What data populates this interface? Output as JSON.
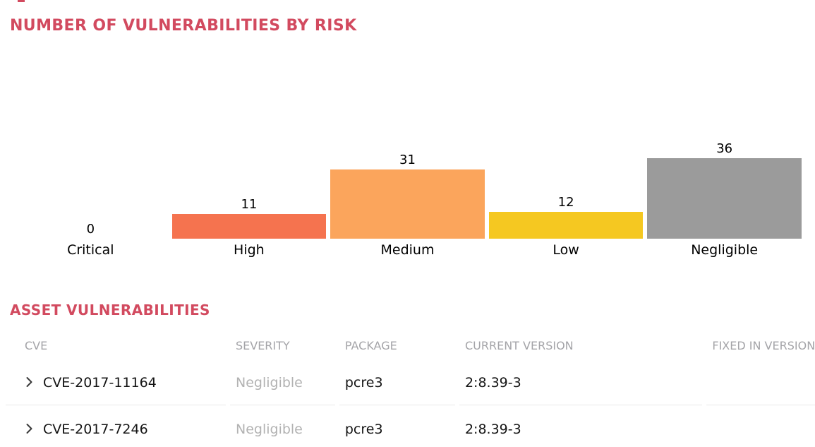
{
  "theme": {
    "accent": "#d24a5f",
    "header_gray": "#a4a4a8",
    "muted_text": "#b2b2b2",
    "divider": "#eaeaea",
    "background": "#ffffff"
  },
  "chart_data": {
    "type": "bar",
    "title": "NUMBER OF VULNERABILITIES BY RISK",
    "categories": [
      "Critical",
      "High",
      "Medium",
      "Low",
      "Negligible"
    ],
    "values": [
      0,
      11,
      31,
      12,
      36
    ],
    "colors": [
      "",
      "#f5734f",
      "#fba55c",
      "#f5c821",
      "#9b9b9b"
    ],
    "value_labels": [
      "0",
      "11",
      "31",
      "12",
      "36"
    ],
    "xlabel": "",
    "ylabel": "",
    "ylim": [
      0,
      36
    ],
    "grid": false,
    "legend": "none",
    "axes_shown": false
  },
  "asset_table": {
    "title": "ASSET VULNERABILITIES",
    "columns": [
      "CVE",
      "SEVERITY",
      "PACKAGE",
      "CURRENT VERSION",
      "FIXED IN VERSION"
    ],
    "rows": [
      {
        "cve": "CVE-2017-11164",
        "severity": "Negligible",
        "package": "pcre3",
        "current_version": "2:8.39-3",
        "fixed_in_version": ""
      },
      {
        "cve": "CVE-2017-7246",
        "severity": "Negligible",
        "package": "pcre3",
        "current_version": "2:8.39-3",
        "fixed_in_version": ""
      }
    ]
  }
}
